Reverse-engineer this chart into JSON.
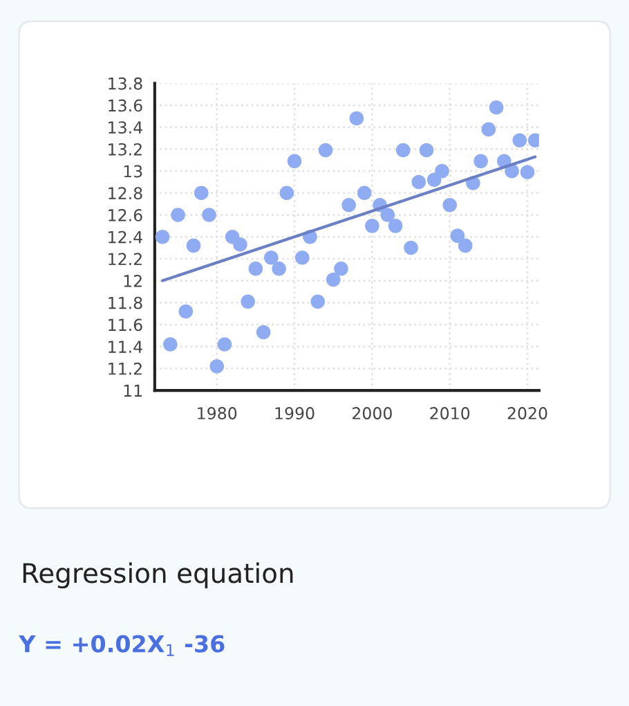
{
  "chart_data": {
    "type": "scatter",
    "xlim": [
      1972,
      2021.5
    ],
    "xticks": [
      1980,
      1990,
      2000,
      2010,
      2020
    ],
    "ylim": [
      11,
      13.8
    ],
    "yticks": [
      11,
      11.2,
      11.4,
      11.6,
      11.8,
      12,
      12.2,
      12.4,
      12.6,
      12.8,
      13,
      13.2,
      13.4,
      13.6,
      13.8
    ],
    "grid": true,
    "series": [
      {
        "marker": "circle",
        "color": "#8fabf2",
        "x": [
          1973,
          1974,
          1975,
          1976,
          1977,
          1978,
          1979,
          1980,
          1981,
          1982,
          1983,
          1984,
          1985,
          1986,
          1987,
          1988,
          1989,
          1990,
          1991,
          1992,
          1993,
          1994,
          1995,
          1996,
          1997,
          1998,
          1999,
          2000,
          2001,
          2002,
          2003,
          2004,
          2005,
          2006,
          2007,
          2008,
          2009,
          2010,
          2011,
          2012,
          2013,
          2014,
          2015,
          2016,
          2017,
          2018,
          2019,
          2020,
          2021
        ],
        "values": [
          12.4,
          11.42,
          12.6,
          11.72,
          12.32,
          12.8,
          12.6,
          11.22,
          11.42,
          12.4,
          12.33,
          11.81,
          12.11,
          11.53,
          12.21,
          12.11,
          12.8,
          13.09,
          12.21,
          12.4,
          11.81,
          13.19,
          12.01,
          12.11,
          12.69,
          13.48,
          12.8,
          12.5,
          12.69,
          12.6,
          12.5,
          13.19,
          12.3,
          12.9,
          13.19,
          12.92,
          13.0,
          12.69,
          12.41,
          12.32,
          12.89,
          13.09,
          13.38,
          13.58,
          13.09,
          13.0,
          13.28,
          12.99,
          13.28
        ]
      },
      {
        "type": "line",
        "color": "#6b80c4",
        "x": [
          1973,
          2021
        ],
        "values": [
          12.0,
          13.13
        ]
      }
    ],
    "annotations": [
      "Regression equation",
      "Y = +0.02X$_{1}$ -36"
    ]
  }
}
